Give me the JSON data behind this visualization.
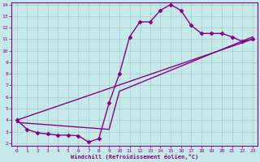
{
  "xlabel": "Windchill (Refroidissement éolien,°C)",
  "bg_color": "#c5e8e8",
  "line_color": "#880088",
  "grid_color": "#a8cccc",
  "xlim": [
    -0.5,
    23.5
  ],
  "ylim": [
    1.8,
    14.2
  ],
  "xticks": [
    0,
    1,
    2,
    3,
    4,
    5,
    6,
    7,
    8,
    9,
    10,
    11,
    12,
    13,
    14,
    15,
    16,
    17,
    18,
    19,
    20,
    21,
    22,
    23
  ],
  "yticks": [
    2,
    3,
    4,
    5,
    6,
    7,
    8,
    9,
    10,
    11,
    12,
    13,
    14
  ],
  "curve_main_x": [
    0,
    1,
    2,
    3,
    4,
    5,
    6,
    7,
    8,
    9,
    10,
    11,
    12,
    13,
    14,
    15,
    16,
    17,
    18,
    19,
    20,
    21,
    22,
    23
  ],
  "curve_main_y": [
    4.0,
    3.2,
    2.9,
    2.8,
    2.7,
    2.7,
    2.65,
    2.1,
    2.4,
    5.5,
    8.0,
    11.2,
    12.5,
    12.5,
    13.5,
    14.0,
    13.5,
    12.2,
    11.5,
    11.5,
    11.5,
    11.2,
    10.8,
    11.0
  ],
  "curve_line1_x": [
    0,
    23
  ],
  "curve_line1_y": [
    4.0,
    11.0
  ],
  "curve_line2_x": [
    0,
    9,
    10,
    23
  ],
  "curve_line2_y": [
    3.8,
    3.2,
    6.5,
    11.2
  ],
  "marker": "D",
  "markersize": 2.5,
  "linewidth": 1.0
}
